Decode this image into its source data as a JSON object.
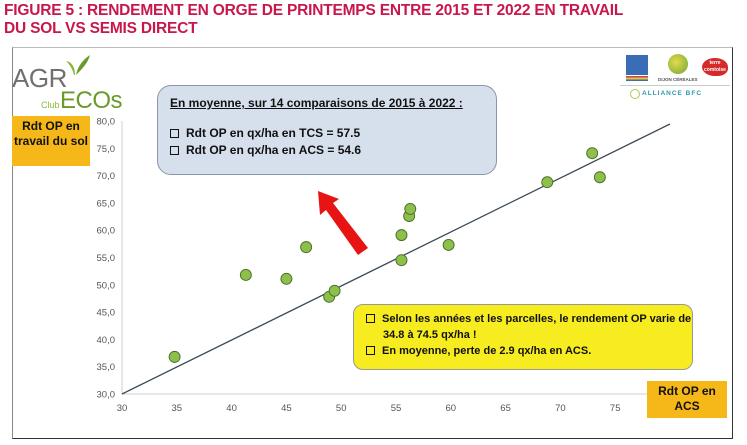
{
  "figure": {
    "title_line1": "FIGURE 5 : RENDEMENT EN ORGE DE PRINTEMPS ENTRE 2015 ET 2022 EN TRAVAIL",
    "title_line2": "DU SOL VS SEMIS DIRECT"
  },
  "logos": {
    "agro": "AGR",
    "club": "Club",
    "ecos": "ECOs",
    "dijon": "DIJON CÉRÉALES",
    "terre": "terre comtoise",
    "alliance": "ALLIANCE BFC"
  },
  "labels": {
    "y_axis": "Rdt OP en travail du sol",
    "x_axis": "Rdt OP en ACS"
  },
  "info_box": {
    "headline": "En moyenne, sur 14 comparaisons de 2015 à 2022 :",
    "items": [
      "Rdt OP en qx/ha en TCS = 57.5",
      "Rdt OP en qx/ha en ACS = 54.6"
    ]
  },
  "yellow_box": {
    "item1_line1": "Selon les années et les parcelles, le rendement OP varie de",
    "item1_line2": "34.8 à 74.5 qx/ha !",
    "item2": "En moyenne, perte de 2.9 qx/ha en ACS."
  },
  "colors": {
    "title": "#c8174a",
    "label_box": "#f5b818",
    "info_box": "#d6dfec",
    "yellow_box": "#f7ec20",
    "points": "#8cc04a",
    "arrow": "#e81414",
    "line": "#3a4a55"
  },
  "chart_data": {
    "type": "scatter",
    "title": "Rendement en orge de printemps entre 2015 et 2022 en travail du sol vs semis direct",
    "xlabel": "Rdt OP en ACS",
    "ylabel": "Rdt OP en travail du sol",
    "xlim": [
      30,
      80
    ],
    "ylim": [
      30,
      80
    ],
    "x_ticks": [
      "30",
      "35",
      "40",
      "45",
      "50",
      "55",
      "60",
      "65",
      "70",
      "75"
    ],
    "y_ticks": [
      "30,0",
      "35,0",
      "40,0",
      "45,0",
      "50,0",
      "55,0",
      "60,0",
      "65,0",
      "70,0",
      "75,0",
      "80,0"
    ],
    "grid": false,
    "reference_line": "y = x",
    "points": [
      {
        "x": 34.8,
        "y": 36.8
      },
      {
        "x": 41.3,
        "y": 51.8
      },
      {
        "x": 45.0,
        "y": 51.1
      },
      {
        "x": 46.8,
        "y": 56.9
      },
      {
        "x": 48.9,
        "y": 47.8
      },
      {
        "x": 49.4,
        "y": 48.9
      },
      {
        "x": 55.5,
        "y": 54.5
      },
      {
        "x": 55.5,
        "y": 59.1
      },
      {
        "x": 56.2,
        "y": 62.6
      },
      {
        "x": 56.3,
        "y": 63.9
      },
      {
        "x": 59.8,
        "y": 57.3
      },
      {
        "x": 68.8,
        "y": 68.8
      },
      {
        "x": 72.9,
        "y": 74.1
      },
      {
        "x": 73.6,
        "y": 69.7
      }
    ],
    "annotations": [
      "En moyenne, sur 14 comparaisons de 2015 à 2022 : Rdt OP en qx/ha en TCS = 57.5 ; Rdt OP en qx/ha en ACS = 54.6",
      "Selon les années et les parcelles, le rendement OP varie de 34.8 à 74.5 qx/ha ! En moyenne, perte de 2.9 qx/ha en ACS."
    ]
  }
}
